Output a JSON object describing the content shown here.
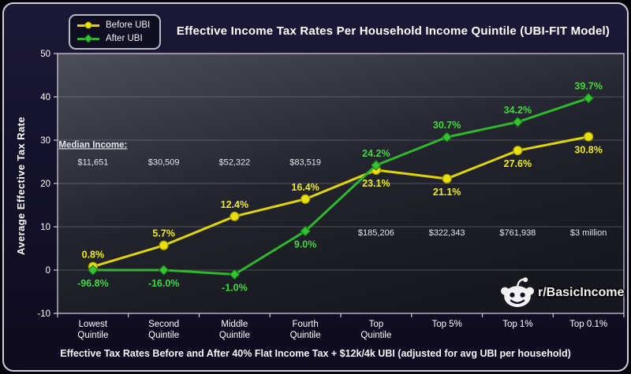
{
  "footer": {
    "caption": "Effective Tax Rates Before and After 40% Flat Income Tax + $12k/4k UBI (adjusted for avg UBI per household)"
  },
  "watermark": {
    "label": "r/BasicIncome",
    "icon": "reddit-snoo-icon"
  },
  "colors": {
    "background": "#14112b",
    "frame_border": "#cfcfd6",
    "plot_gradient_top": "#4e4e5a",
    "plot_gradient_bottom": "#17171f",
    "grid": "rgba(255,255,255,0.22)",
    "axis_text": "#ffffff",
    "annotation_text": "#e4e4ec",
    "before_ubi": "#e8e00f",
    "before_ubi_label": "#eded1c",
    "after_ubi": "#2eb82e",
    "after_ubi_label": "#3fd93f"
  },
  "chart_data": {
    "type": "line",
    "title": "Effective Income Tax Rates Per Household Income Quintile (UBI-FIT Model)",
    "xlabel": "",
    "ylabel": "Average Effective Tax Rate",
    "ylim": [
      -10,
      50
    ],
    "yticks": [
      -10,
      0,
      10,
      20,
      30,
      40,
      50
    ],
    "grid": "horizontal",
    "legend_position": "top-left",
    "categories": [
      "Lowest\nQuintile",
      "Second\nQuintile",
      "Middle\nQuintile",
      "Fourth\nQuintile",
      "Top\nQuintile",
      "Top 5%",
      "Top 1%",
      "Top 0.1%"
    ],
    "series": [
      {
        "name": "Before UBI",
        "color": "#e8e00f",
        "line_color": "#ddd50a",
        "marker_stroke": "#a89f00",
        "label_color": "#eded1c",
        "marker": "circle",
        "values": [
          0.8,
          5.7,
          12.4,
          16.4,
          23.1,
          21.1,
          27.6,
          30.8
        ],
        "labels": [
          "0.8%",
          "5.7%",
          "12.4%",
          "16.4%",
          "23.1%",
          "21.1%",
          "27.6%",
          "30.8%"
        ],
        "label_positions": [
          "above",
          "above",
          "above",
          "above",
          "below",
          "below",
          "below",
          "below"
        ]
      },
      {
        "name": "After UBI",
        "color": "#35c335",
        "line_color": "#2eb82e",
        "marker_stroke": "#177a17",
        "label_color": "#3fd93f",
        "marker": "diamond",
        "values": [
          -96.8,
          -16.0,
          -1.0,
          9.0,
          24.2,
          30.7,
          34.2,
          39.7
        ],
        "plotted_values": [
          0,
          0,
          -1.0,
          9.0,
          24.2,
          30.7,
          34.2,
          39.7
        ],
        "labels": [
          "-96.8%",
          "-16.0%",
          "-1.0%",
          "9.0%",
          "24.2%",
          "30.7%",
          "34.2%",
          "39.7%"
        ],
        "label_positions": [
          "below",
          "below",
          "below",
          "below",
          "above",
          "above",
          "above",
          "above"
        ]
      }
    ],
    "annotations": {
      "header": {
        "text": "Median Income:",
        "category_index": 0,
        "y": 28.3,
        "underline": true
      },
      "values": [
        {
          "text": "$11,651",
          "category_index": 0,
          "y": 24.3
        },
        {
          "text": "$30,509",
          "category_index": 1,
          "y": 24.3
        },
        {
          "text": "$52,322",
          "category_index": 2,
          "y": 24.3
        },
        {
          "text": "$83,519",
          "category_index": 3,
          "y": 24.3
        },
        {
          "text": "$185,206",
          "category_index": 4,
          "y": 8
        },
        {
          "text": "$322,343",
          "category_index": 5,
          "y": 8
        },
        {
          "text": "$761,938",
          "category_index": 6,
          "y": 8
        },
        {
          "text": "$3 million",
          "category_index": 7,
          "y": 8
        }
      ]
    }
  }
}
